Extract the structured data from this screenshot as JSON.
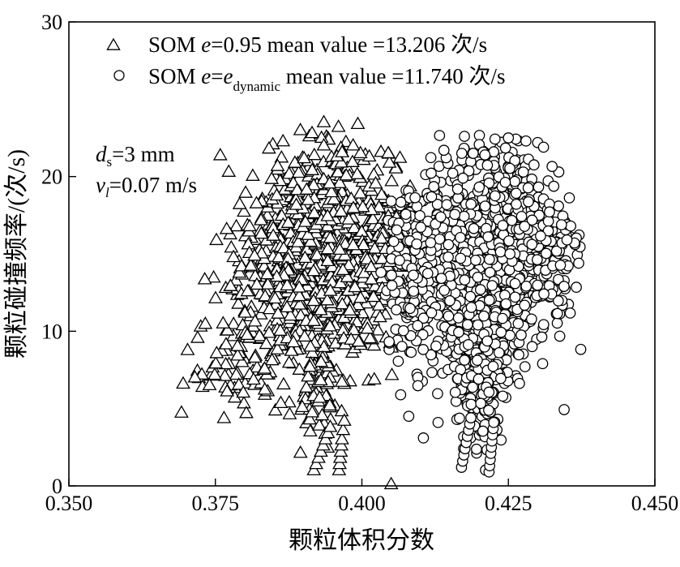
{
  "chart_data": {
    "type": "scatter",
    "title": "",
    "xlabel": "颗粒体积分数",
    "ylabel": "颗粒碰撞频率/(次/s)",
    "xlim": [
      0.35,
      0.45
    ],
    "ylim": [
      0,
      30
    ],
    "xticks": [
      "0.350",
      "0.375",
      "0.400",
      "0.425",
      "0.450"
    ],
    "yticks": [
      "0",
      "10",
      "20",
      "30"
    ],
    "grid": false,
    "legend_position": "top-left",
    "series": [
      {
        "name": "SOM e=0.95  mean value =13.206 次/s",
        "legend_parts": {
          "pre": "SOM ",
          "e": "e",
          "mid": "=0.95  mean value =13.206 次/s"
        },
        "marker": "triangle",
        "mean_value": 13.206,
        "clusters": [
          {
            "x": 0.3905,
            "y": 14.0,
            "sx": 0.0045,
            "sy": 3.5,
            "n": 420
          },
          {
            "x": 0.3835,
            "y": 12.5,
            "sx": 0.0055,
            "sy": 4.0,
            "n": 170
          },
          {
            "x": 0.399,
            "y": 14.5,
            "sx": 0.0035,
            "sy": 3.0,
            "n": 230
          },
          {
            "x": 0.404,
            "y": 15.0,
            "sx": 0.0022,
            "sy": 3.0,
            "n": 80
          },
          {
            "x": 0.394,
            "y": 20.0,
            "sx": 0.004,
            "sy": 1.6,
            "n": 70
          },
          {
            "x": 0.376,
            "y": 8.0,
            "sx": 0.0035,
            "sy": 1.6,
            "n": 30
          },
          {
            "x": 0.3925,
            "y": 6.0,
            "sx": 0.0018,
            "sy": 1.8,
            "n": 70
          }
        ],
        "explicit_points": [
          [
            0.3695,
            6.6
          ],
          [
            0.3715,
            7.0
          ],
          [
            0.374,
            6.5
          ],
          [
            0.377,
            6.1
          ],
          [
            0.3935,
            23.5
          ],
          [
            0.396,
            23.2
          ],
          [
            0.3915,
            22.8
          ],
          [
            0.3935,
            22.0
          ],
          [
            0.3985,
            22.0
          ],
          [
            0.4045,
            21.5
          ],
          [
            0.4065,
            21.2
          ],
          [
            0.3918,
            1.0
          ],
          [
            0.3922,
            1.4
          ],
          [
            0.3926,
            1.8
          ],
          [
            0.393,
            2.2
          ],
          [
            0.3934,
            2.6
          ],
          [
            0.3938,
            3.0
          ],
          [
            0.3942,
            3.4
          ],
          [
            0.3946,
            3.8
          ],
          [
            0.3961,
            1.0
          ],
          [
            0.3962,
            1.4
          ],
          [
            0.3963,
            1.8
          ],
          [
            0.3964,
            2.2
          ],
          [
            0.3965,
            2.6
          ],
          [
            0.3966,
            3.0
          ],
          [
            0.3968,
            3.6
          ],
          [
            0.397,
            4.2
          ],
          [
            0.405,
            0.1
          ]
        ]
      },
      {
        "name": "SOM e=e_dynamic  mean value =11.740 次/s",
        "legend_parts": {
          "pre": "SOM ",
          "e": "e",
          "eq": "=",
          "e2": "e",
          "sub": "dynamic",
          "mid": "  mean value =11.740 次/s"
        },
        "marker": "circle",
        "mean_value": 11.74,
        "clusters": [
          {
            "x": 0.423,
            "y": 14.0,
            "sx": 0.0045,
            "sy": 3.0,
            "n": 560
          },
          {
            "x": 0.415,
            "y": 14.5,
            "sx": 0.0035,
            "sy": 3.3,
            "n": 230
          },
          {
            "x": 0.408,
            "y": 13.5,
            "sx": 0.0022,
            "sy": 2.8,
            "n": 120
          },
          {
            "x": 0.43,
            "y": 15.5,
            "sx": 0.0035,
            "sy": 2.0,
            "n": 180
          },
          {
            "x": 0.421,
            "y": 9.0,
            "sx": 0.0028,
            "sy": 2.0,
            "n": 130
          },
          {
            "x": 0.418,
            "y": 6.0,
            "sx": 0.0015,
            "sy": 1.5,
            "n": 60
          },
          {
            "x": 0.4215,
            "y": 6.0,
            "sx": 0.0012,
            "sy": 1.5,
            "n": 60
          },
          {
            "x": 0.424,
            "y": 20.3,
            "sx": 0.004,
            "sy": 1.2,
            "n": 50
          }
        ],
        "explicit_points": [
          [
            0.4175,
            22.6
          ],
          [
            0.425,
            22.5
          ],
          [
            0.428,
            22.3
          ],
          [
            0.43,
            22.2
          ],
          [
            0.431,
            21.9
          ],
          [
            0.414,
            21.7
          ],
          [
            0.4225,
            21.6
          ],
          [
            0.419,
            21.5
          ],
          [
            0.421,
            21.4
          ],
          [
            0.437,
            14.4
          ],
          [
            0.435,
            15.9
          ],
          [
            0.4345,
            12.9
          ],
          [
            0.4105,
            3.1
          ],
          [
            0.413,
            4.1
          ],
          [
            0.408,
            4.5
          ],
          [
            0.417,
            1.2
          ],
          [
            0.4172,
            1.6
          ],
          [
            0.4174,
            2.0
          ],
          [
            0.4176,
            2.4
          ],
          [
            0.4178,
            2.8
          ],
          [
            0.418,
            3.2
          ],
          [
            0.4182,
            3.6
          ],
          [
            0.4184,
            4.0
          ],
          [
            0.4186,
            4.4
          ],
          [
            0.4217,
            0.9
          ],
          [
            0.4218,
            1.3
          ],
          [
            0.4219,
            1.7
          ],
          [
            0.422,
            2.1
          ],
          [
            0.4221,
            2.5
          ],
          [
            0.4222,
            2.9
          ],
          [
            0.4223,
            3.3
          ],
          [
            0.4224,
            3.7
          ],
          [
            0.4225,
            4.1
          ]
        ]
      }
    ],
    "annotations": {
      "ds": {
        "main": "d",
        "sub": "s",
        "rest": "=3 mm"
      },
      "vl": {
        "main": "v",
        "sub": "l",
        "rest": "=0.07 m/s"
      }
    }
  }
}
